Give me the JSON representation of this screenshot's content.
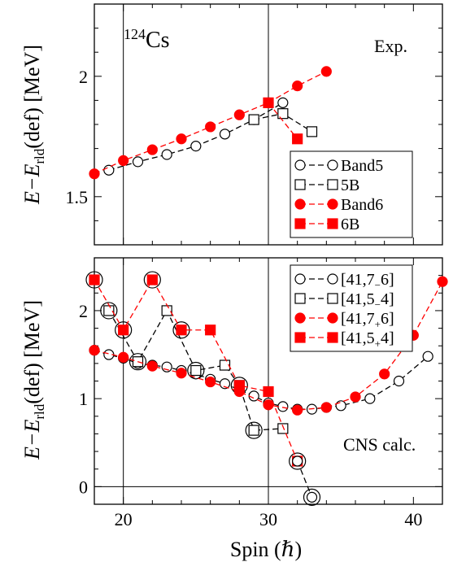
{
  "chart_data": [
    {
      "type": "line",
      "xlim": [
        18,
        42
      ],
      "ylim": [
        1.3,
        2.3
      ],
      "ylabel_main": "E−E",
      "ylabel_sub": "rld",
      "ylabel_rest": "(def) [MeV]",
      "xlabel": "",
      "yticks": [
        1.5,
        2
      ],
      "ytick_labels": [
        "1.5",
        "2"
      ],
      "vlines": [
        20,
        30
      ],
      "nucleus_mass": "124",
      "nucleus_symbol": "Cs",
      "annotation": "Exp.",
      "legend_position": "bottom-right",
      "series": [
        {
          "name": "Band5",
          "marker": "circle",
          "filled": false,
          "color": "#000000",
          "x": [
            19,
            21,
            23,
            25,
            27,
            29,
            31
          ],
          "y": [
            1.61,
            1.645,
            1.675,
            1.71,
            1.76,
            1.82,
            1.89
          ]
        },
        {
          "name": "5B",
          "marker": "square",
          "filled": false,
          "color": "#000000",
          "x": [
            29,
            31,
            33
          ],
          "y": [
            1.82,
            1.845,
            1.77
          ]
        },
        {
          "name": "Band6",
          "marker": "circle",
          "filled": true,
          "color": "#ff0000",
          "x": [
            18,
            20,
            22,
            24,
            26,
            28,
            30,
            32,
            34
          ],
          "y": [
            1.595,
            1.65,
            1.695,
            1.74,
            1.79,
            1.84,
            1.89,
            1.96,
            2.02
          ]
        },
        {
          "name": "6B",
          "marker": "square",
          "filled": true,
          "color": "#ff0000",
          "x": [
            30,
            32
          ],
          "y": [
            1.89,
            1.74
          ]
        }
      ]
    },
    {
      "type": "line",
      "xlim": [
        18,
        42
      ],
      "ylim": [
        -0.2,
        2.6
      ],
      "ylabel_main": "E−E",
      "ylabel_sub": "rld",
      "ylabel_rest": "(def) [MeV]",
      "xlabel": "Spin (ℏ)",
      "xticks": [
        20,
        30,
        40
      ],
      "xtick_labels": [
        "20",
        "30",
        "40"
      ],
      "yticks": [
        0,
        1,
        2
      ],
      "ytick_labels": [
        "0",
        "1",
        "2"
      ],
      "vlines": [
        20,
        30
      ],
      "hlines": [
        0
      ],
      "annotation": "CNS calc.",
      "legend_position": "top-right",
      "series": [
        {
          "name": "[41,7 6]",
          "n_sub": "−",
          "tail": "7 6",
          "marker": "circle",
          "filled": false,
          "color": "#000000",
          "x": [
            18,
            19,
            20,
            21,
            22,
            23,
            24,
            25,
            26,
            27,
            28,
            29,
            30,
            31,
            32,
            33,
            34,
            35,
            37,
            39,
            41
          ],
          "y": [
            1.55,
            1.5,
            1.46,
            1.4,
            1.38,
            1.36,
            1.32,
            1.28,
            1.22,
            1.17,
            1.1,
            1.03,
            0.95,
            0.91,
            0.88,
            0.88,
            0.9,
            0.92,
            1.0,
            1.2,
            1.48
          ]
        },
        {
          "name": "[41,5 4]",
          "n_sub": "−",
          "tail": "5 4",
          "marker": "square",
          "filled": false,
          "color": "#000000",
          "x": [
            19,
            21,
            23,
            25,
            27,
            28,
            29,
            31
          ],
          "y": [
            2.0,
            1.42,
            2.0,
            1.32,
            1.38,
            1.15,
            0.64,
            0.66
          ]
        },
        {
          "name": "[41,7+6]",
          "n_sub": "+",
          "tail": "7 6",
          "marker": "circle",
          "filled": true,
          "color": "#ff0000",
          "x": [
            18,
            20,
            22,
            24,
            26,
            28,
            30,
            32,
            34,
            36,
            38,
            40,
            42
          ],
          "y": [
            1.55,
            1.47,
            1.37,
            1.29,
            1.19,
            1.08,
            0.93,
            0.87,
            0.9,
            1.02,
            1.28,
            1.72,
            2.33
          ]
        },
        {
          "name": "[41,5+4]",
          "n_sub": "+",
          "tail": "5 4",
          "marker": "square",
          "filled": true,
          "color": "#ff0000",
          "x": [
            18,
            20,
            22,
            24,
            26,
            28,
            30,
            32
          ],
          "y": [
            2.35,
            1.78,
            2.35,
            1.78,
            1.78,
            1.15,
            1.08,
            0.29
          ]
        },
        {
          "name": "tail",
          "marker": "circle",
          "filled": false,
          "color": "#000000",
          "hidden_legend": true,
          "x": [
            32,
            33
          ],
          "y": [
            0.29,
            -0.12
          ]
        }
      ],
      "highlighted": [
        {
          "x": 18,
          "y": 2.35
        },
        {
          "x": 19,
          "y": 2.0
        },
        {
          "x": 20,
          "y": 1.78
        },
        {
          "x": 21,
          "y": 1.42
        },
        {
          "x": 22,
          "y": 2.35
        },
        {
          "x": 24,
          "y": 1.78
        },
        {
          "x": 25,
          "y": 1.32
        },
        {
          "x": 28,
          "y": 1.15
        },
        {
          "x": 29,
          "y": 0.64
        },
        {
          "x": 32,
          "y": 0.29
        },
        {
          "x": 33,
          "y": -0.12
        }
      ]
    }
  ]
}
